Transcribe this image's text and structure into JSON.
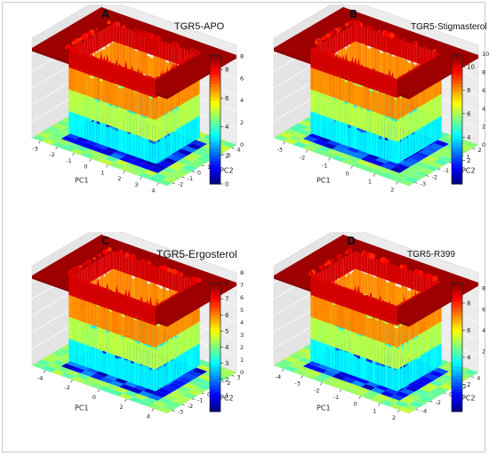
{
  "chart_data": [
    {
      "type": "surface",
      "panel_label": "A",
      "title": "TGR5-APO",
      "xlabel": "PC1",
      "ylabel": "PC2",
      "x_ticks": [
        "-3",
        "-2",
        "-1",
        "0",
        "1",
        "2",
        "3",
        "4"
      ],
      "y_ticks": [
        "-2",
        "-1",
        "0",
        "1",
        "2",
        "3",
        "4"
      ],
      "z_ticks": [
        "0",
        "2",
        "4",
        "6",
        "8"
      ],
      "colorbar_ticks": [
        "8",
        "6",
        "4",
        "2",
        "0"
      ],
      "zlim": [
        0,
        9
      ],
      "colormap": "jet"
    },
    {
      "type": "surface",
      "panel_label": "B",
      "title": "TGR5-Stigmasterol",
      "xlabel": "PC1",
      "ylabel": "PC2",
      "x_ticks": [
        "-3",
        "-2",
        "-1",
        "0",
        "1",
        "2"
      ],
      "y_ticks": [
        "-3",
        "-2",
        "-1",
        "0",
        "1",
        "2"
      ],
      "z_ticks": [
        "0",
        "2",
        "4",
        "6",
        "8",
        "10"
      ],
      "colorbar_ticks": [
        "10",
        "8",
        "6",
        "4",
        "2"
      ],
      "zlim": [
        0,
        11
      ],
      "colormap": "jet"
    },
    {
      "type": "surface",
      "panel_label": "C",
      "title": "TGR5-Ergosterol",
      "xlabel": "PC1",
      "ylabel": "PC2",
      "x_ticks": [
        "-4",
        "-2",
        "0",
        "2",
        "4"
      ],
      "y_ticks": [
        "-3",
        "-2",
        "-1",
        "0",
        "1",
        "2",
        "3"
      ],
      "z_ticks": [
        "0",
        "1",
        "2",
        "3",
        "4",
        "5",
        "6",
        "7",
        "8"
      ],
      "colorbar_ticks": [
        "8",
        "7",
        "6",
        "5",
        "4",
        "3",
        "2",
        "1"
      ],
      "zlim": [
        0,
        8
      ],
      "colormap": "jet"
    },
    {
      "type": "surface",
      "panel_label": "D",
      "title": "TGR5-R399",
      "xlabel": "PC1",
      "ylabel": "PC2",
      "x_ticks": [
        "-4",
        "-3",
        "-2",
        "-1",
        "0",
        "1",
        "2"
      ],
      "y_ticks": [
        "-4",
        "-2",
        "0",
        "2",
        "4"
      ],
      "z_ticks": [
        "2",
        "4",
        "6",
        "8"
      ],
      "colorbar_ticks": [
        "8",
        "6",
        "4",
        "2"
      ],
      "zlim": [
        0,
        9.5
      ],
      "colormap": "jet"
    }
  ]
}
